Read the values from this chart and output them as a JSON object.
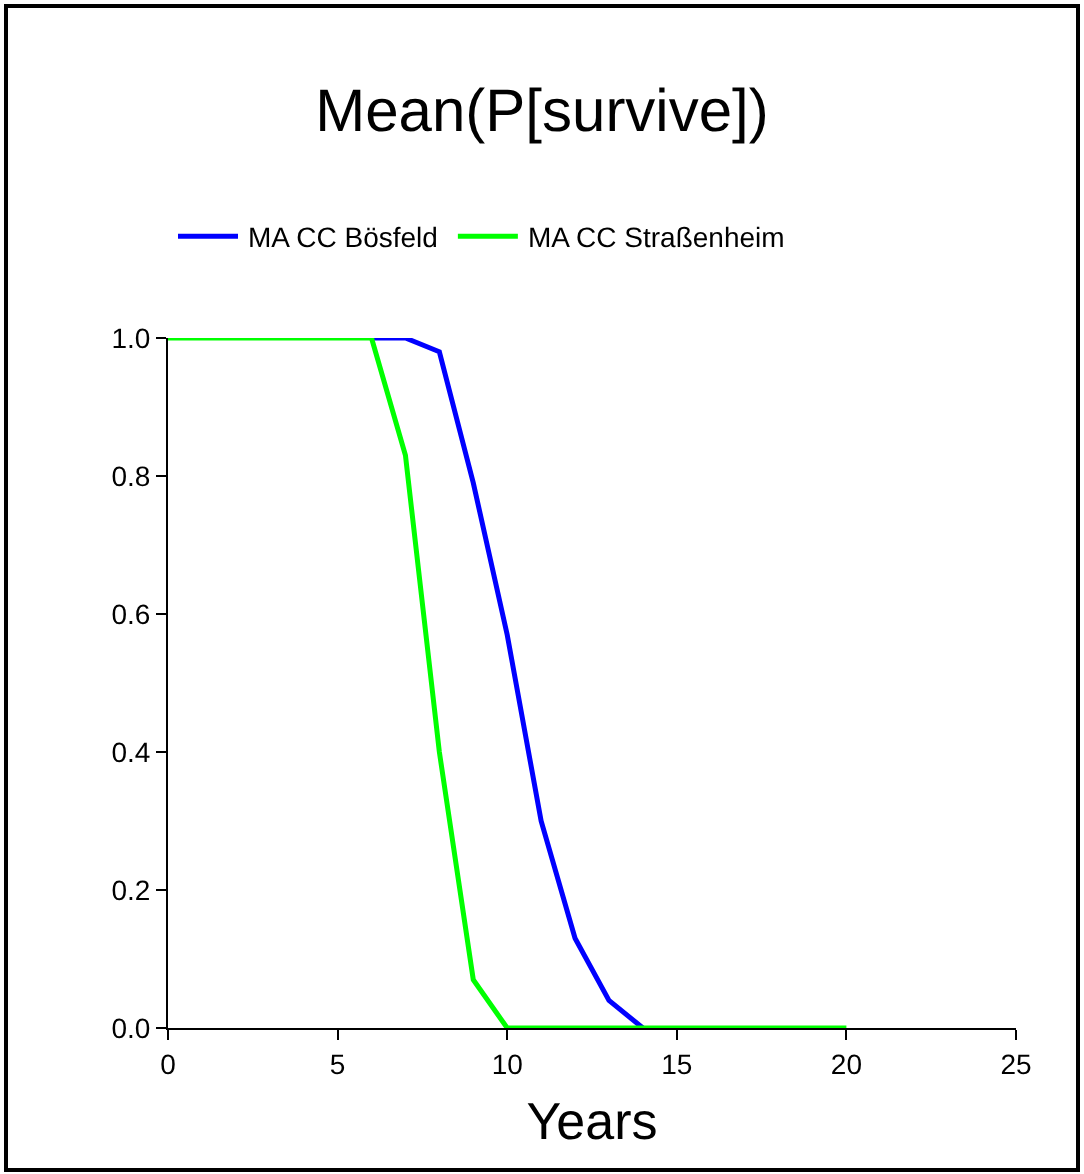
{
  "chart_data": {
    "type": "line",
    "title": "Mean(P[survive])",
    "xlabel": "Years",
    "x": [
      0,
      1,
      2,
      3,
      4,
      5,
      6,
      7,
      8,
      9,
      10,
      11,
      12,
      13,
      14,
      15,
      16,
      17,
      18,
      19,
      20
    ],
    "series": [
      {
        "name": "MA CC Bösfeld",
        "color": "#0000ff",
        "values": [
          null,
          null,
          null,
          null,
          null,
          null,
          1,
          1,
          0.98,
          0.79,
          0.57,
          0.3,
          0.13,
          0.04,
          0,
          null,
          null,
          null,
          null,
          null,
          null
        ]
      },
      {
        "name": "MA CC Straßenheim",
        "color": "#00ff00",
        "values": [
          1,
          1,
          1,
          1,
          1,
          1,
          1,
          0.83,
          0.4,
          0.07,
          0,
          0,
          0,
          0,
          0,
          0,
          0,
          0,
          0,
          0,
          0
        ]
      }
    ],
    "xlim": [
      0,
      25
    ],
    "xticks": [
      0,
      5,
      10,
      15,
      20,
      25
    ],
    "ylim": [
      0,
      1
    ],
    "yticks": [
      {
        "value": 0,
        "label": "0.0"
      },
      {
        "value": 0.2,
        "label": "0.2"
      },
      {
        "value": 0.4,
        "label": "0.4"
      },
      {
        "value": 0.6,
        "label": "0.6"
      },
      {
        "value": 0.8,
        "label": "0.8"
      },
      {
        "value": 1,
        "label": "1.0"
      }
    ],
    "grid": false,
    "legend": "top",
    "marker": "none",
    "line_style": "solid"
  }
}
